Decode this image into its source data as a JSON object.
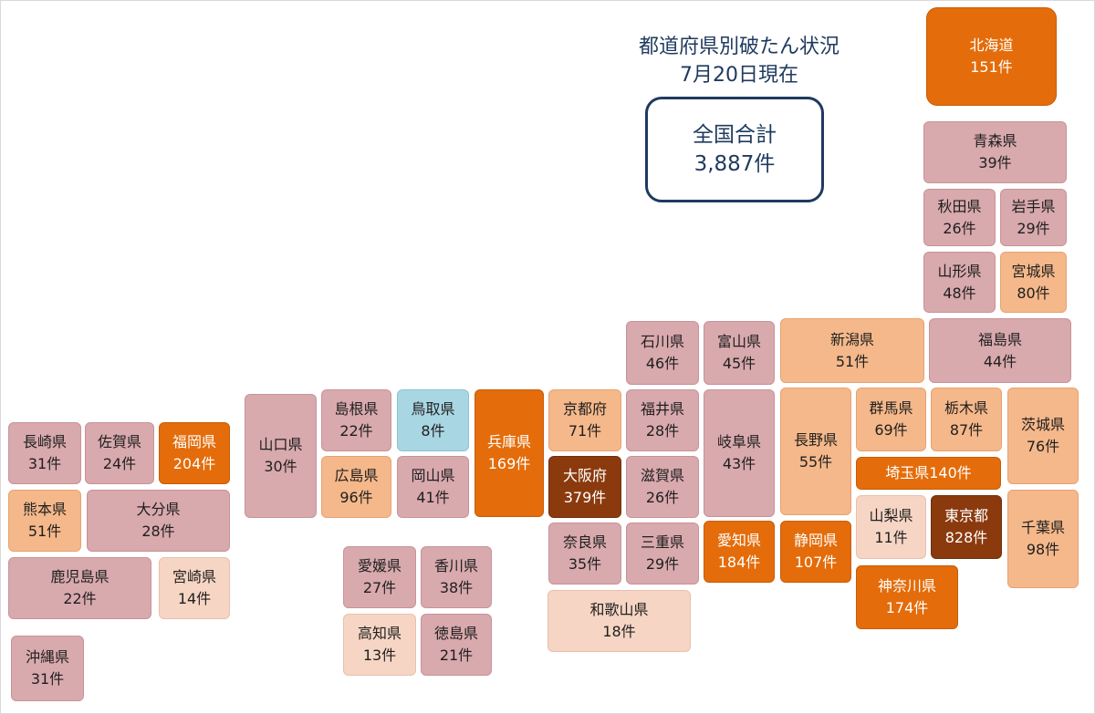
{
  "title": {
    "line1": "都道府県別破たん状況",
    "line2": "7月20日現在"
  },
  "total": {
    "label": "全国合計",
    "value": "3,887件"
  },
  "prefectures": [
    {
      "name": "北海道",
      "count": "151件"
    },
    {
      "name": "青森県",
      "count": "39件"
    },
    {
      "name": "秋田県",
      "count": "26件"
    },
    {
      "name": "岩手県",
      "count": "29件"
    },
    {
      "name": "山形県",
      "count": "48件"
    },
    {
      "name": "宮城県",
      "count": "80件"
    },
    {
      "name": "石川県",
      "count": "46件"
    },
    {
      "name": "富山県",
      "count": "45件"
    },
    {
      "name": "新潟県",
      "count": "51件"
    },
    {
      "name": "福島県",
      "count": "44件"
    },
    {
      "name": "島根県",
      "count": "22件"
    },
    {
      "name": "鳥取県",
      "count": "8件"
    },
    {
      "name": "兵庫県",
      "count": "169件"
    },
    {
      "name": "京都府",
      "count": "71件"
    },
    {
      "name": "福井県",
      "count": "28件"
    },
    {
      "name": "岐阜県",
      "count": "43件"
    },
    {
      "name": "長野県",
      "count": "55件"
    },
    {
      "name": "群馬県",
      "count": "69件"
    },
    {
      "name": "栃木県",
      "count": "87件"
    },
    {
      "name": "茨城県",
      "count": "76件"
    },
    {
      "name": "長崎県",
      "count": "31件"
    },
    {
      "name": "佐賀県",
      "count": "24件"
    },
    {
      "name": "福岡県",
      "count": "204件"
    },
    {
      "name": "山口県",
      "count": "30件"
    },
    {
      "name": "広島県",
      "count": "96件"
    },
    {
      "name": "岡山県",
      "count": "41件"
    },
    {
      "name": "大阪府",
      "count": "379件"
    },
    {
      "name": "滋賀県",
      "count": "26件"
    },
    {
      "name": "埼玉県",
      "count": "140件"
    },
    {
      "name": "熊本県",
      "count": "51件"
    },
    {
      "name": "大分県",
      "count": "28件"
    },
    {
      "name": "山梨県",
      "count": "11件"
    },
    {
      "name": "東京都",
      "count": "828件"
    },
    {
      "name": "千葉県",
      "count": "98件"
    },
    {
      "name": "奈良県",
      "count": "35件"
    },
    {
      "name": "三重県",
      "count": "29件"
    },
    {
      "name": "愛知県",
      "count": "184件"
    },
    {
      "name": "静岡県",
      "count": "107件"
    },
    {
      "name": "鹿児島県",
      "count": "22件"
    },
    {
      "name": "宮崎県",
      "count": "14件"
    },
    {
      "name": "愛媛県",
      "count": "27件"
    },
    {
      "name": "香川県",
      "count": "38件"
    },
    {
      "name": "神奈川県",
      "count": "174件"
    },
    {
      "name": "和歌山県",
      "count": "18件"
    },
    {
      "name": "高知県",
      "count": "13件"
    },
    {
      "name": "徳島県",
      "count": "21件"
    },
    {
      "name": "沖縄県",
      "count": "31件"
    }
  ],
  "colors": {
    "band_under_10": "#a9d6e3",
    "band_10_19": "#f6d5c4",
    "band_20_49": "#d8a9ad",
    "band_50_99": "#f5b88a",
    "band_100_299": "#e46c0a",
    "band_300_plus": "#8b3a0e",
    "title_text": "#1f3a5f"
  }
}
